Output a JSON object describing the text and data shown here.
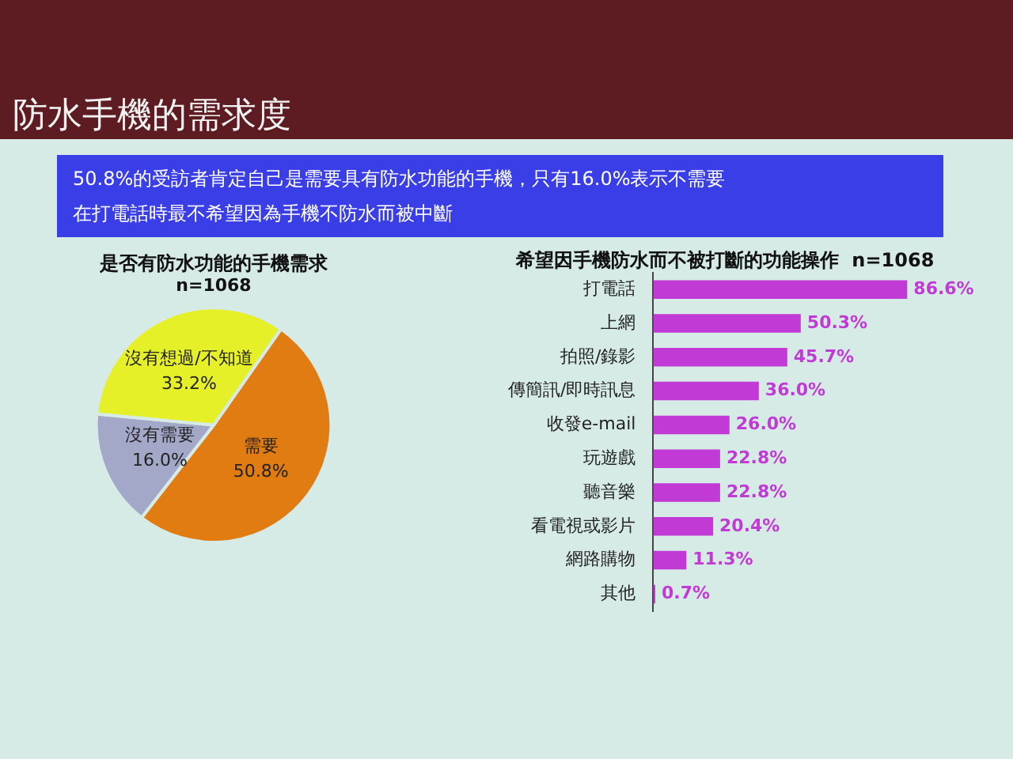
{
  "chart_data": [
    {
      "type": "other",
      "title": "防水手機的需求度",
      "annotations": [
        "50.8%的受訪者肯定自己是需要具有防水功能的手機，只有16.0%表示不需要",
        "在打電話時最不希望因為手機不防水而被中斷"
      ]
    },
    {
      "type": "pie",
      "title": "是否有防水功能的手機需求",
      "subtitle": "n=1068",
      "categories": [
        "需要",
        "沒有需要",
        "沒有想過/不知道"
      ],
      "values": [
        50.8,
        16.0,
        33.2
      ],
      "colors": [
        "#e07c12",
        "#a4a8c8",
        "#e6f028"
      ],
      "value_labels": [
        "50.8%",
        "16.0%",
        "33.2%"
      ]
    },
    {
      "type": "bar",
      "orientation": "horizontal",
      "title": "希望因手機防水而不被打斷的功能操作  n=1068",
      "tick_labels": "y",
      "color": "#c23ad6",
      "categories": [
        "打電話",
        "上網",
        "拍照/錄影",
        "傳簡訊/即時訊息",
        "收發e-mail",
        "玩遊戲",
        "聽音樂",
        "看電視或影片",
        "網路購物",
        "其他"
      ],
      "values": [
        86.6,
        50.3,
        45.7,
        36.0,
        26.0,
        22.8,
        22.8,
        20.4,
        11.3,
        0.7
      ],
      "value_labels": [
        "86.6%",
        "50.3%",
        "45.7%",
        "36.0%",
        "26.0%",
        "22.8%",
        "22.8%",
        "20.4%",
        "11.3%",
        "0.7%"
      ]
    }
  ]
}
